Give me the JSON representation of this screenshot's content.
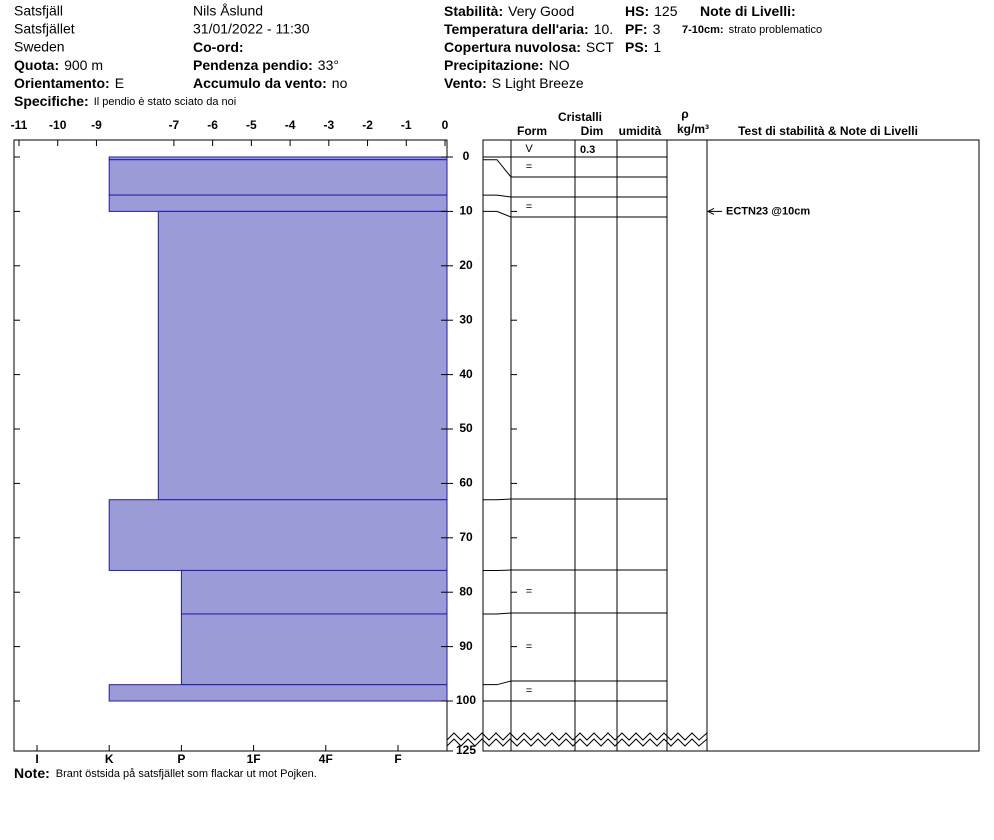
{
  "header": {
    "location": "Satsfjäll",
    "area": "Satsfjället",
    "country": "Sweden",
    "observer": "Nils Åslund",
    "datetime": "31/01/2022 - 11:30",
    "fields": [
      {
        "label": "Quota:",
        "value": "900 m"
      },
      {
        "label": "Orientamento:",
        "value": "E"
      },
      {
        "label": "Specifiche:",
        "value": "Il pendio è stato sciato da noi"
      },
      {
        "label": "Co-ord:"
      },
      {
        "label": "Pendenza pendio:",
        "value": "33°"
      },
      {
        "label": "Accumulo da vento:",
        "value": "no"
      },
      {
        "label": "Stabilità:",
        "value": "Very Good"
      },
      {
        "label": "Temperatura dell'aria:",
        "value": "10."
      },
      {
        "label": "Copertura nuvolosa:",
        "value": "SCT"
      },
      {
        "label": "Precipitazione:",
        "value": "NO"
      },
      {
        "label": "Vento:",
        "value": "S Light Breeze"
      },
      {
        "label": "HS:",
        "value": "125"
      },
      {
        "label": "PF:",
        "value": "3"
      },
      {
        "label": "PS:",
        "value": "1"
      },
      {
        "label": "Note di Livelli:"
      },
      {
        "label": "7-10cm:",
        "value": "strato problematico"
      }
    ]
  },
  "chart_data": {
    "type": "snow-profile",
    "xlim": [
      -11,
      0
    ],
    "xticks": [
      -11,
      -10,
      -9,
      -7,
      -6,
      -5,
      -4,
      -3,
      -2,
      -1,
      0
    ],
    "ylim": [
      0,
      125
    ],
    "yticks": [
      0,
      10,
      20,
      30,
      40,
      50,
      60,
      70,
      80,
      90,
      100,
      125
    ],
    "hardness_categories": [
      "I",
      "K",
      "P",
      "1F",
      "4F",
      "F"
    ],
    "color": "#9b9bd8",
    "edge_color": "#1c1cb0",
    "columns": {
      "crystals": "Cristalli",
      "form": "Form",
      "size": "Dim",
      "moisture": "umidità",
      "density": "ρ",
      "density_unit": "kg/m³",
      "tests": "Test di stabilità & Note di Livelli"
    },
    "surface": {
      "form": "V",
      "size": "0.3"
    },
    "layers": [
      {
        "top": 0,
        "bottom": 0.5,
        "hardness": 1,
        "form": "="
      },
      {
        "top": 0.5,
        "bottom": 7,
        "hardness": 1
      },
      {
        "top": 7,
        "bottom": 10,
        "hardness": 1,
        "form": "="
      },
      {
        "top": 10,
        "bottom": 63,
        "hardness": 1.68
      },
      {
        "top": 63,
        "bottom": 76,
        "hardness": 1
      },
      {
        "top": 76,
        "bottom": 84,
        "hardness": 2,
        "form": "="
      },
      {
        "top": 84,
        "bottom": 97,
        "hardness": 2,
        "form": "="
      },
      {
        "top": 97,
        "bottom": 100,
        "hardness": 1,
        "form": "="
      }
    ],
    "tests": [
      {
        "depth": 10,
        "label": "ECTN23 @10cm"
      }
    ],
    "note_label": "Note:",
    "note": "Brant östsida på satsfjället som flackar ut mot Pojken."
  }
}
